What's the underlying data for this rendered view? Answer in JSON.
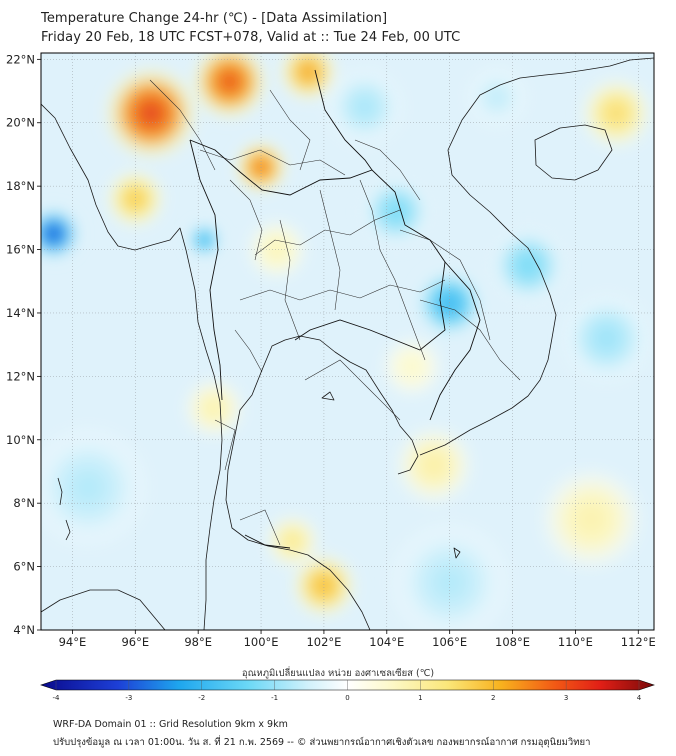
{
  "header": {
    "title": "Temperature Change 24-hr (℃) - [Data Assimilation]",
    "subtitle": "Friday 20 Feb, 18 UTC FCST+078, Valid at :: Tue 24 Feb, 00 UTC"
  },
  "map": {
    "lon_range": [
      93,
      112.5
    ],
    "lat_range": [
      4,
      22.2
    ],
    "x_ticks": [
      "94°E",
      "96°E",
      "98°E",
      "100°E",
      "102°E",
      "104°E",
      "106°E",
      "108°E",
      "110°E",
      "112°E"
    ],
    "y_ticks": [
      "22°N",
      "20°N",
      "18°N",
      "16°N",
      "14°N",
      "12°N",
      "10°N",
      "8°N",
      "6°N",
      "4°N"
    ],
    "ocean_color": "#dff2fb",
    "anomalies": [
      {
        "lon": 96.5,
        "lat": 20.3,
        "value": 3.2,
        "spread": 1.6
      },
      {
        "lon": 99.0,
        "lat": 21.3,
        "value": 3.0,
        "spread": 1.3
      },
      {
        "lon": 100.0,
        "lat": 18.6,
        "value": 2.6,
        "spread": 0.9
      },
      {
        "lon": 101.5,
        "lat": 21.6,
        "value": 2.2,
        "spread": 1.0
      },
      {
        "lon": 96.0,
        "lat": 17.6,
        "value": 1.8,
        "spread": 1.0
      },
      {
        "lon": 93.4,
        "lat": 16.5,
        "value": -3.0,
        "spread": 0.9
      },
      {
        "lon": 98.2,
        "lat": 16.3,
        "value": -2.0,
        "spread": 0.6
      },
      {
        "lon": 106.0,
        "lat": 14.3,
        "value": -2.0,
        "spread": 1.2
      },
      {
        "lon": 104.3,
        "lat": 17.2,
        "value": -1.3,
        "spread": 1.2
      },
      {
        "lon": 108.5,
        "lat": 15.5,
        "value": -1.3,
        "spread": 1.3
      },
      {
        "lon": 111.0,
        "lat": 13.2,
        "value": -1.0,
        "spread": 1.5
      },
      {
        "lon": 103.3,
        "lat": 20.5,
        "value": -0.9,
        "spread": 1.3
      },
      {
        "lon": 107.5,
        "lat": 20.8,
        "value": -0.7,
        "spread": 1.0
      },
      {
        "lon": 94.5,
        "lat": 8.5,
        "value": -0.8,
        "spread": 2.0
      },
      {
        "lon": 106.0,
        "lat": 5.5,
        "value": -0.8,
        "spread": 2.0
      },
      {
        "lon": 102.0,
        "lat": 5.4,
        "value": 2.0,
        "spread": 1.1
      },
      {
        "lon": 101.0,
        "lat": 6.8,
        "value": 1.2,
        "spread": 0.9
      },
      {
        "lon": 98.5,
        "lat": 11.0,
        "value": 0.9,
        "spread": 1.0
      },
      {
        "lon": 105.5,
        "lat": 9.2,
        "value": 1.0,
        "spread": 1.3
      },
      {
        "lon": 111.3,
        "lat": 20.3,
        "value": 1.5,
        "spread": 1.2
      },
      {
        "lon": 110.5,
        "lat": 7.5,
        "value": 0.9,
        "spread": 1.7
      },
      {
        "lon": 100.5,
        "lat": 16.0,
        "value": 0.8,
        "spread": 1.0
      },
      {
        "lon": 104.8,
        "lat": 12.3,
        "value": 0.6,
        "spread": 1.0
      }
    ]
  },
  "colorbar": {
    "title": "อุณหภูมิเปลี่ยนแปลง หน่วย องศาเซลเซียส (℃)",
    "range": [
      -4,
      4
    ],
    "ticks": [
      "-4",
      "-3",
      "-2",
      "-1",
      "0",
      "1",
      "2",
      "3",
      "4"
    ],
    "stops": [
      {
        "v": -4.0,
        "c": "#0a0a8c"
      },
      {
        "v": -3.0,
        "c": "#1d3fd6"
      },
      {
        "v": -2.2,
        "c": "#1ea6ee"
      },
      {
        "v": -1.3,
        "c": "#6bd8f6"
      },
      {
        "v": -0.5,
        "c": "#d2f1fb"
      },
      {
        "v": 0.0,
        "c": "#ffffff"
      },
      {
        "v": 0.5,
        "c": "#fdfad0"
      },
      {
        "v": 1.3,
        "c": "#fbe77a"
      },
      {
        "v": 2.0,
        "c": "#f8b21e"
      },
      {
        "v": 2.7,
        "c": "#f25a15"
      },
      {
        "v": 3.3,
        "c": "#e11f16"
      },
      {
        "v": 4.0,
        "c": "#7a0a0a"
      }
    ]
  },
  "footer": {
    "line1": "WRF-DA Domain 01 :: Grid Resolution 9km x 9km",
    "line2": "ปรับปรุงข้อมูล ณ เวลา 01:00น. วัน ส. ที่ 21 ก.พ. 2569 -- © ส่วนพยากรณ์อากาศเชิงตัวเลข กองพยากรณ์อากาศ กรมอุตุนิยมวิทยา"
  }
}
